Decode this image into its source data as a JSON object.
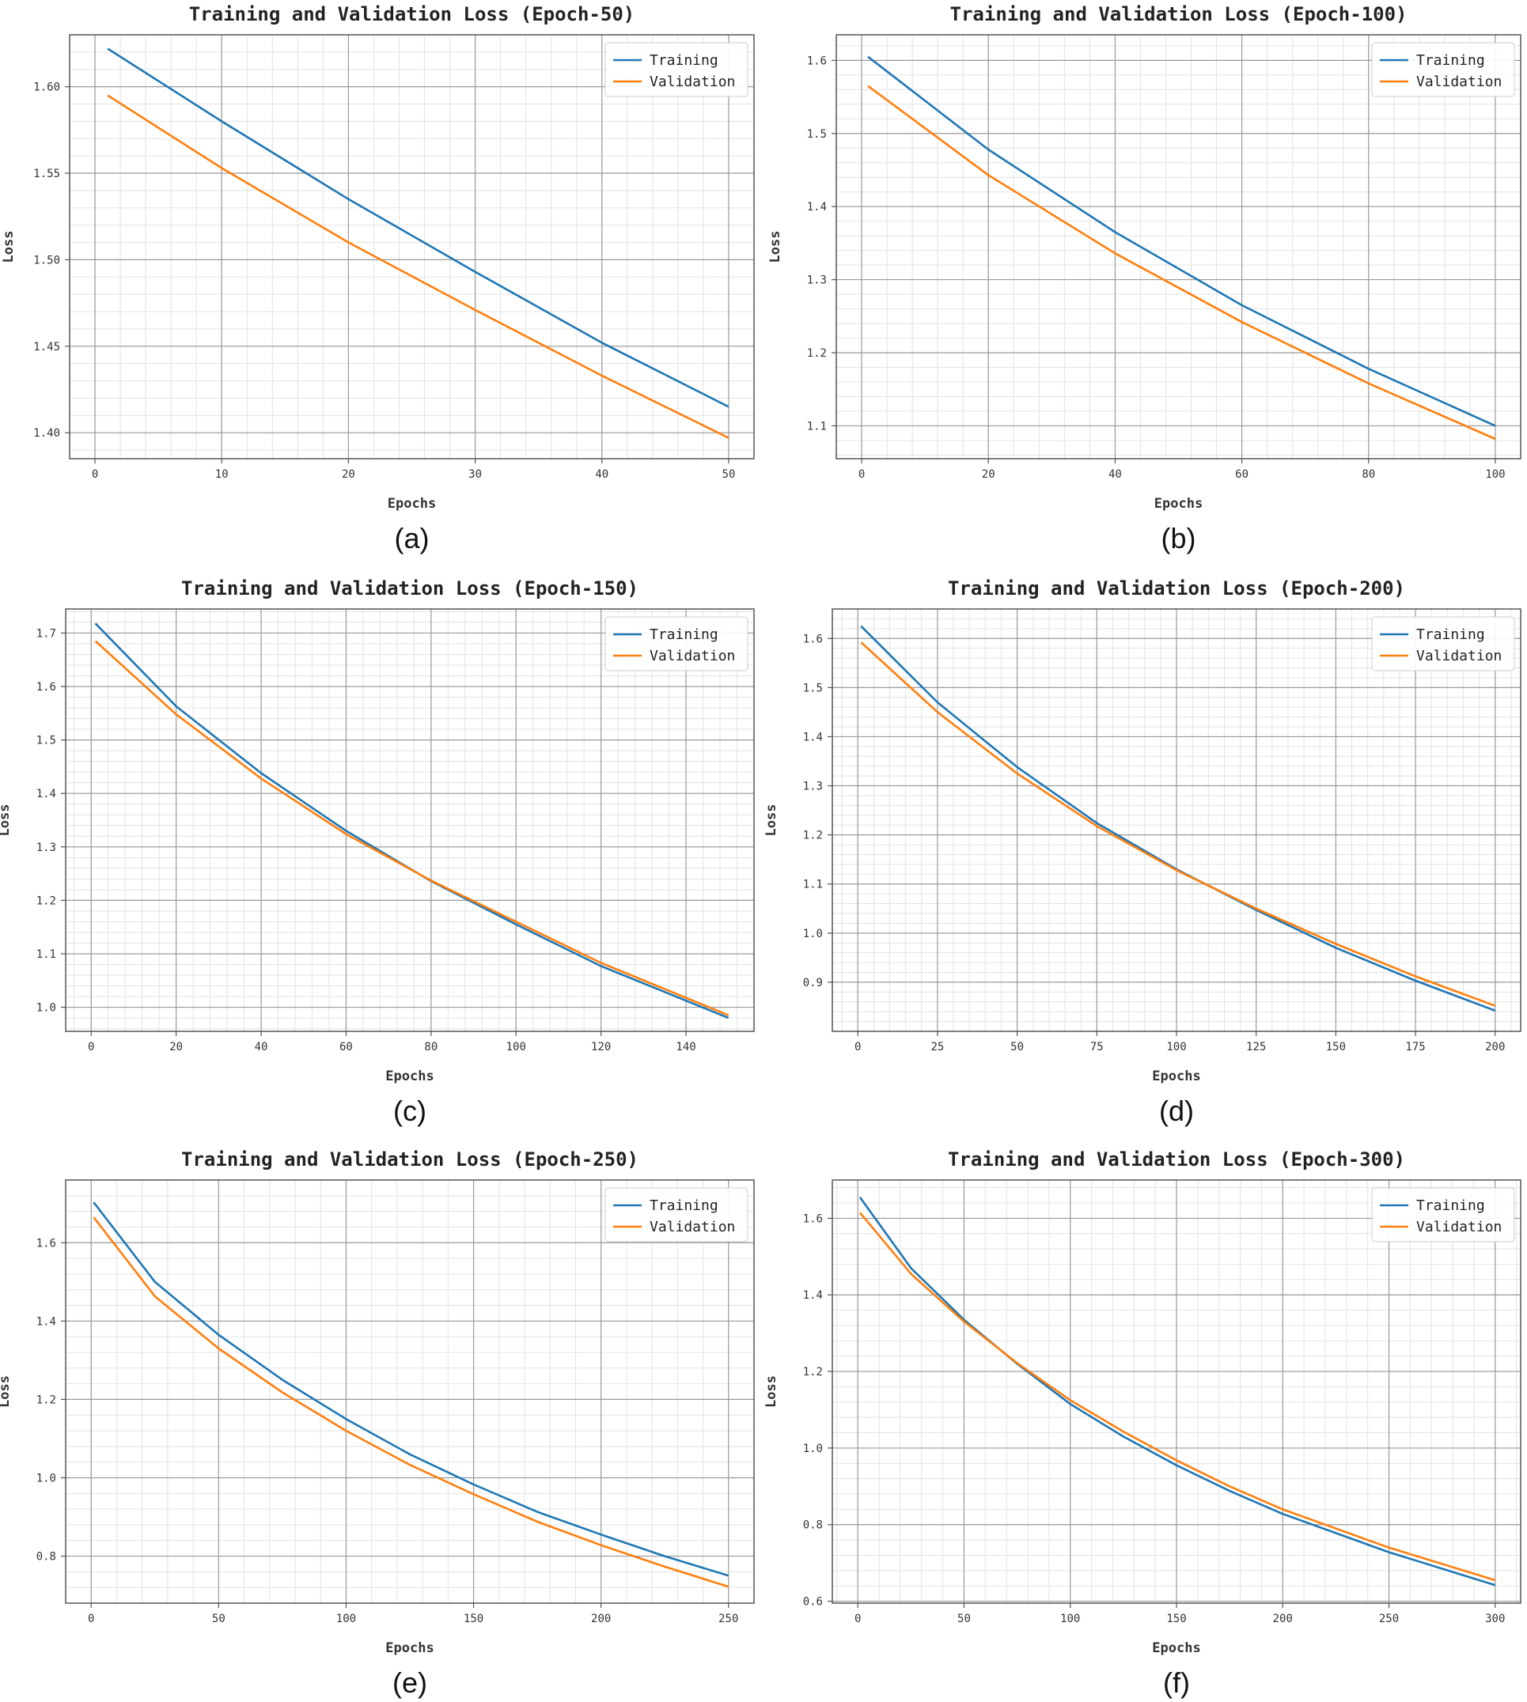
{
  "figure": {
    "chart_data": [
      {
        "type": "line",
        "caption": "(a)",
        "title": "Training and Validation Loss (Epoch-50)",
        "xlabel": "Epochs",
        "ylabel": "Loss",
        "xlim": [
          -2,
          52
        ],
        "ylim": [
          1.385,
          1.63
        ],
        "xticks": [
          0,
          10,
          20,
          30,
          40,
          50
        ],
        "yticks": [
          1.4,
          1.45,
          1.5,
          1.55,
          1.6
        ],
        "ytick_labels": [
          "1.40",
          "1.45",
          "1.50",
          "1.55",
          "1.60"
        ],
        "legend": "top-right",
        "series": [
          {
            "name": "Training",
            "color": "#1f77b4",
            "x": [
              1,
              10,
              20,
              30,
              40,
              50
            ],
            "y": [
              1.622,
              1.58,
              1.535,
              1.493,
              1.452,
              1.415
            ]
          },
          {
            "name": "Validation",
            "color": "#ff7f0e",
            "x": [
              1,
              10,
              20,
              30,
              40,
              50
            ],
            "y": [
              1.595,
              1.553,
              1.51,
              1.471,
              1.433,
              1.397
            ]
          }
        ]
      },
      {
        "type": "line",
        "caption": "(b)",
        "title": "Training and Validation Loss (Epoch-100)",
        "xlabel": "Epochs",
        "ylabel": "Loss",
        "xlim": [
          -4,
          104
        ],
        "ylim": [
          1.055,
          1.635
        ],
        "xticks": [
          0,
          20,
          40,
          60,
          80,
          100
        ],
        "yticks": [
          1.1,
          1.2,
          1.3,
          1.4,
          1.5,
          1.6
        ],
        "ytick_labels": [
          "1.1",
          "1.2",
          "1.3",
          "1.4",
          "1.5",
          "1.6"
        ],
        "legend": "top-right",
        "series": [
          {
            "name": "Training",
            "color": "#1f77b4",
            "x": [
              1,
              20,
              40,
              60,
              80,
              100
            ],
            "y": [
              1.605,
              1.478,
              1.365,
              1.265,
              1.178,
              1.1
            ]
          },
          {
            "name": "Validation",
            "color": "#ff7f0e",
            "x": [
              1,
              20,
              40,
              60,
              80,
              100
            ],
            "y": [
              1.565,
              1.443,
              1.336,
              1.242,
              1.158,
              1.082
            ]
          }
        ]
      },
      {
        "type": "line",
        "caption": "(c)",
        "title": "Training and Validation Loss (Epoch-150)",
        "xlabel": "Epochs",
        "ylabel": "Loss",
        "xlim": [
          -6,
          156
        ],
        "ylim": [
          0.955,
          1.745
        ],
        "xticks": [
          0,
          20,
          40,
          60,
          80,
          100,
          120,
          140
        ],
        "yticks": [
          1.0,
          1.1,
          1.2,
          1.3,
          1.4,
          1.5,
          1.6,
          1.7
        ],
        "ytick_labels": [
          "1.0",
          "1.1",
          "1.2",
          "1.3",
          "1.4",
          "1.5",
          "1.6",
          "1.7"
        ],
        "legend": "top-right",
        "series": [
          {
            "name": "Training",
            "color": "#1f77b4",
            "x": [
              1,
              20,
              40,
              60,
              80,
              100,
              120,
              150
            ],
            "y": [
              1.718,
              1.563,
              1.438,
              1.33,
              1.236,
              1.155,
              1.077,
              0.98
            ]
          },
          {
            "name": "Validation",
            "color": "#ff7f0e",
            "x": [
              1,
              20,
              40,
              60,
              80,
              100,
              120,
              150
            ],
            "y": [
              1.685,
              1.548,
              1.428,
              1.324,
              1.237,
              1.16,
              1.083,
              0.985
            ]
          }
        ]
      },
      {
        "type": "line",
        "caption": "(d)",
        "title": "Training and Validation Loss (Epoch-200)",
        "xlabel": "Epochs",
        "ylabel": "Loss",
        "xlim": [
          -8,
          208
        ],
        "ylim": [
          0.8,
          1.66
        ],
        "xticks": [
          0,
          25,
          50,
          75,
          100,
          125,
          150,
          175,
          200
        ],
        "yticks": [
          0.9,
          1.0,
          1.1,
          1.2,
          1.3,
          1.4,
          1.5,
          1.6
        ],
        "ytick_labels": [
          "0.9",
          "1.0",
          "1.1",
          "1.2",
          "1.3",
          "1.4",
          "1.5",
          "1.6"
        ],
        "legend": "top-right",
        "series": [
          {
            "name": "Training",
            "color": "#1f77b4",
            "x": [
              1,
              25,
              50,
              75,
              100,
              125,
              150,
              175,
              200
            ],
            "y": [
              1.625,
              1.47,
              1.338,
              1.224,
              1.13,
              1.047,
              0.97,
              0.903,
              0.842
            ]
          },
          {
            "name": "Validation",
            "color": "#ff7f0e",
            "x": [
              1,
              25,
              50,
              75,
              100,
              125,
              150,
              175,
              200
            ],
            "y": [
              1.592,
              1.45,
              1.325,
              1.218,
              1.128,
              1.05,
              0.978,
              0.912,
              0.852
            ]
          }
        ]
      },
      {
        "type": "line",
        "caption": "(e)",
        "title": "Training and Validation Loss (Epoch-250)",
        "xlabel": "Epochs",
        "ylabel": "Loss",
        "xlim": [
          -10,
          260
        ],
        "ylim": [
          0.68,
          1.76
        ],
        "xticks": [
          0,
          50,
          100,
          150,
          200,
          250
        ],
        "yticks": [
          0.8,
          1.0,
          1.2,
          1.4,
          1.6
        ],
        "ytick_labels": [
          "0.8",
          "1.0",
          "1.2",
          "1.4",
          "1.6"
        ],
        "legend": "top-right",
        "series": [
          {
            "name": "Training",
            "color": "#1f77b4",
            "x": [
              1,
              25,
              50,
              75,
              100,
              125,
              150,
              175,
              200,
              225,
              250
            ],
            "y": [
              1.703,
              1.5,
              1.365,
              1.25,
              1.15,
              1.06,
              0.983,
              0.913,
              0.855,
              0.8,
              0.75
            ]
          },
          {
            "name": "Validation",
            "color": "#ff7f0e",
            "x": [
              1,
              25,
              50,
              75,
              100,
              125,
              150,
              175,
              200,
              225,
              250
            ],
            "y": [
              1.665,
              1.463,
              1.33,
              1.218,
              1.12,
              1.033,
              0.958,
              0.888,
              0.828,
              0.773,
              0.722
            ]
          }
        ]
      },
      {
        "type": "line",
        "caption": "(f)",
        "title": "Training and Validation Loss (Epoch-300)",
        "xlabel": "Epochs",
        "ylabel": "Loss",
        "xlim": [
          -12,
          312
        ],
        "ylim": [
          0.595,
          1.7
        ],
        "xticks": [
          0,
          50,
          100,
          150,
          200,
          250,
          300
        ],
        "yticks": [
          0.6,
          0.8,
          1.0,
          1.2,
          1.4,
          1.6
        ],
        "ytick_labels": [
          "0.6",
          "0.8",
          "1.0",
          "1.2",
          "1.4",
          "1.6"
        ],
        "legend": "top-right",
        "series": [
          {
            "name": "Training",
            "color": "#1f77b4",
            "x": [
              1,
              25,
              50,
              75,
              100,
              125,
              150,
              175,
              200,
              250,
              300
            ],
            "y": [
              1.655,
              1.47,
              1.335,
              1.22,
              1.115,
              1.03,
              0.955,
              0.888,
              0.828,
              0.728,
              0.642
            ]
          },
          {
            "name": "Validation",
            "color": "#ff7f0e",
            "x": [
              1,
              25,
              50,
              75,
              100,
              125,
              150,
              175,
              200,
              250,
              300
            ],
            "y": [
              1.615,
              1.455,
              1.33,
              1.222,
              1.125,
              1.043,
              0.968,
              0.9,
              0.84,
              0.74,
              0.655
            ]
          }
        ]
      }
    ]
  }
}
